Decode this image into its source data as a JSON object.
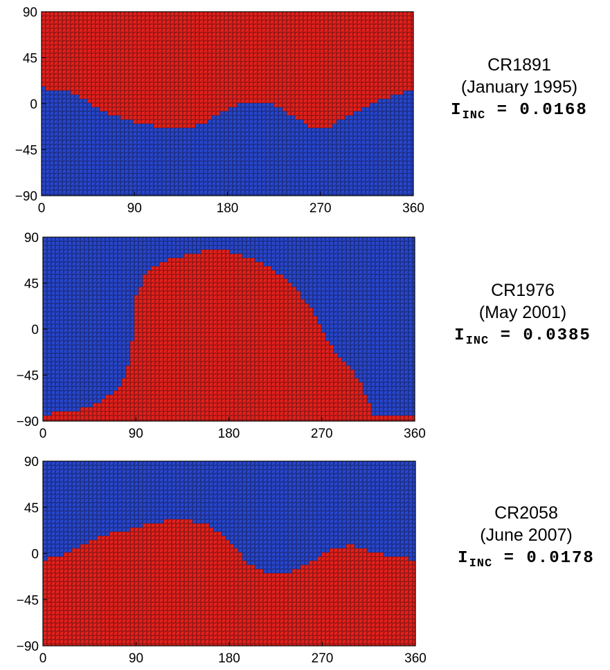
{
  "colors": {
    "open_region": "#e8201c",
    "closed_region": "#2846d0",
    "grid": "#0a0a0a",
    "axes": "#000000"
  },
  "chart_data": [
    {
      "type": "heatmap",
      "label_cr": "CR1891",
      "label_date": "(January 1995)",
      "inc_symbol": "I",
      "inc_subscript": "INC",
      "inc_value": "= 0.0168",
      "xlim": [
        0,
        360
      ],
      "ylim": [
        -90,
        90
      ],
      "xticks": [
        "0",
        "90",
        "180",
        "270",
        "360"
      ],
      "yticks": [
        "90",
        "45",
        "0",
        "−45",
        "−90"
      ],
      "grid": true,
      "fill_above": "open_region",
      "fill_below": "closed_region",
      "boundary": {
        "longitude": [
          0,
          20,
          40,
          60,
          80,
          100,
          120,
          140,
          160,
          180,
          200,
          220,
          240,
          260,
          270,
          280,
          300,
          320,
          340,
          360
        ],
        "latitude": [
          15,
          14,
          5,
          -8,
          -15,
          -20,
          -24,
          -24,
          -18,
          -5,
          2,
          2,
          -10,
          -22,
          -25,
          -22,
          -10,
          0,
          8,
          15
        ]
      }
    },
    {
      "type": "heatmap",
      "label_cr": "CR1976",
      "label_date": "(May 2001)",
      "inc_symbol": "I",
      "inc_subscript": "INC",
      "inc_value": "= 0.0385",
      "xlim": [
        0,
        360
      ],
      "ylim": [
        -90,
        90
      ],
      "xticks": [
        "0",
        "90",
        "180",
        "270",
        "360"
      ],
      "yticks": [
        "90",
        "45",
        "0",
        "−45",
        "−90"
      ],
      "grid": true,
      "fill_above": "closed_region",
      "fill_below": "open_region",
      "boundary": {
        "longitude": [
          0,
          20,
          40,
          60,
          75,
          85,
          90,
          100,
          120,
          140,
          160,
          180,
          200,
          220,
          240,
          260,
          270,
          280,
          290,
          300,
          310,
          320,
          330,
          360
        ],
        "latitude": [
          -83,
          -82,
          -78,
          -68,
          -55,
          -30,
          30,
          57,
          67,
          73,
          78,
          76,
          70,
          60,
          45,
          20,
          0,
          -18,
          -30,
          -40,
          -58,
          -85,
          -85,
          -85
        ]
      }
    },
    {
      "type": "heatmap",
      "label_cr": "CR2058",
      "label_date": "(June 2007)",
      "inc_symbol": "I",
      "inc_subscript": "INC",
      "inc_value": "= 0.0178",
      "xlim": [
        0,
        360
      ],
      "ylim": [
        -90,
        90
      ],
      "xticks": [
        "0",
        "90",
        "180",
        "270",
        "360"
      ],
      "yticks": [
        "90",
        "45",
        "0",
        "−45",
        "−90"
      ],
      "grid": true,
      "fill_above": "closed_region",
      "fill_below": "open_region",
      "boundary": {
        "longitude": [
          0,
          20,
          40,
          60,
          80,
          100,
          120,
          140,
          160,
          180,
          200,
          220,
          240,
          260,
          280,
          300,
          320,
          340,
          360
        ],
        "latitude": [
          -6,
          -2,
          10,
          18,
          22,
          28,
          32,
          32,
          28,
          12,
          -12,
          -20,
          -18,
          -8,
          5,
          8,
          0,
          -2,
          -6
        ]
      }
    }
  ]
}
